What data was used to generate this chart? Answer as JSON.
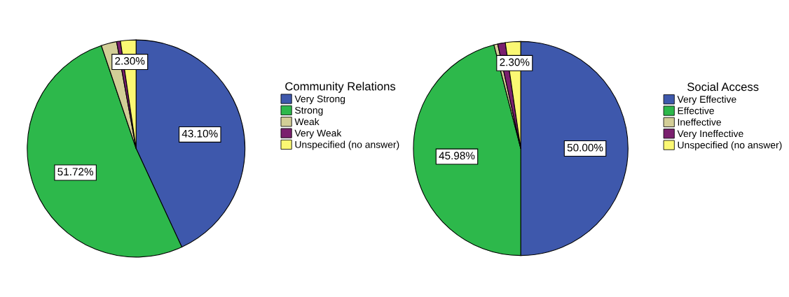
{
  "chart_data": [
    {
      "type": "pie",
      "legend_title": "Community Relations",
      "legend": "right",
      "categories": [
        "Very Strong",
        "Strong",
        "Weak",
        "Very Weak",
        "Unspecified (no answer)"
      ],
      "values": [
        43.1,
        51.72,
        2.3,
        0.57,
        2.3
      ],
      "colors": [
        "#3e58ac",
        "#2db84b",
        "#d3ce97",
        "#7a1f6e",
        "#fbf873"
      ],
      "value_labels": [
        "43.10%",
        "51.72%",
        null,
        null,
        "2.30%"
      ]
    },
    {
      "type": "pie",
      "legend_title": "Social Access",
      "legend": "right",
      "categories": [
        "Very Effective",
        "Effective",
        "Ineffective",
        "Very Ineffective",
        "Unspecified (no answer)"
      ],
      "values": [
        50.0,
        45.98,
        0.57,
        1.15,
        2.3
      ],
      "colors": [
        "#3e58ac",
        "#2db84b",
        "#d3ce97",
        "#7a1f6e",
        "#fbf873"
      ],
      "value_labels": [
        "50.00%",
        "45.98%",
        null,
        null,
        "2.30%"
      ]
    }
  ]
}
